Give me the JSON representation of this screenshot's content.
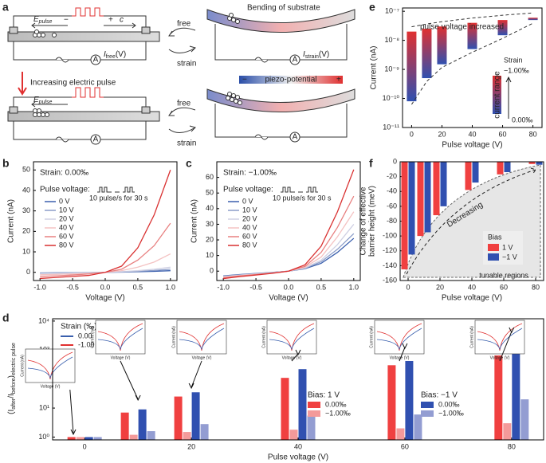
{
  "diagram": {
    "panel": "a",
    "e_main": "E",
    "e_sub": "pulse",
    "c": "c",
    "i_main": "I",
    "i_free_sub": "free",
    "i_strain_sub": "strain",
    "i_tail": "(V)",
    "minus": "−",
    "plus": "+",
    "increasing": "Increasing electric pulse",
    "free": "free",
    "strain": "strain",
    "bending": "Bending of substrate",
    "piezo": "piezo-potential",
    "ammeter": "A"
  },
  "chart_data": [
    {
      "panel": "b",
      "type": "line",
      "xlabel": "Voltage (V)",
      "ylabel": "Current (nA)",
      "annotations": {
        "strain": "Strain: 0.00‰",
        "legend_title": "Pulse voltage:",
        "pulse_note": "10 pulse/s for 30 s"
      },
      "x": [
        -1,
        -0.75,
        -0.5,
        -0.25,
        0,
        0.25,
        0.5,
        0.75,
        1
      ],
      "series": [
        {
          "name": "0 V",
          "color": "#3a5fad",
          "values": [
            -0.3,
            -0.2,
            -0.15,
            -0.1,
            0,
            0.1,
            0.3,
            0.5,
            0.8
          ]
        },
        {
          "name": "10 V",
          "color": "#8a9cc8",
          "values": [
            -0.4,
            -0.3,
            -0.2,
            -0.1,
            0,
            0.2,
            0.5,
            0.9,
            1.5
          ]
        },
        {
          "name": "20 V",
          "color": "#cfd0e3",
          "values": [
            -0.6,
            -0.5,
            -0.4,
            -0.2,
            0,
            0.3,
            0.8,
            1.5,
            2.5
          ]
        },
        {
          "name": "40 V",
          "color": "#f4c2c2",
          "values": [
            -1.2,
            -1,
            -0.8,
            -0.5,
            0,
            0.8,
            2.5,
            5,
            9
          ]
        },
        {
          "name": "60 V",
          "color": "#e88080",
          "values": [
            -2,
            -1.7,
            -1.3,
            -0.8,
            0,
            1.5,
            6,
            13,
            24
          ]
        },
        {
          "name": "80 V",
          "color": "#d93030",
          "values": [
            -3,
            -2.5,
            -2,
            -1.5,
            0,
            3,
            12,
            28,
            50
          ]
        }
      ],
      "xlim": [
        -1.1,
        1.1
      ],
      "xticks": [
        {
          "value": -1,
          "label": "-1.0"
        },
        -0.5,
        {
          "value": 0,
          "label": "0.0"
        },
        0.5,
        {
          "value": 1,
          "label": "1.0"
        }
      ],
      "ylim": [
        -4,
        54
      ],
      "yticks": [
        0,
        10,
        20,
        30,
        40,
        50
      ]
    },
    {
      "panel": "c",
      "type": "line",
      "xlabel": "Voltage (V)",
      "ylabel": "Current (nA)",
      "annotations": {
        "strain": "Strain: −1.00‰",
        "legend_title": "Pulse voltage:",
        "pulse_note": "10 pulse/s for 30 s"
      },
      "x": [
        -1,
        -0.75,
        -0.5,
        -0.25,
        0,
        0.25,
        0.5,
        0.75,
        1
      ],
      "series": [
        {
          "name": "0 V",
          "color": "#3a5fad",
          "values": [
            -3,
            -2.2,
            -1.5,
            -0.8,
            0,
            1.5,
            5,
            12,
            21
          ]
        },
        {
          "name": "10 V",
          "color": "#8a9cc8",
          "values": [
            -3.2,
            -2.4,
            -1.6,
            -0.9,
            0,
            1.7,
            6,
            14,
            24
          ]
        },
        {
          "name": "20 V",
          "color": "#cfd0e3",
          "values": [
            -3.5,
            -2.6,
            -1.8,
            -1,
            0,
            2,
            7,
            17,
            30
          ]
        },
        {
          "name": "40 V",
          "color": "#f4c2c2",
          "values": [
            -3.8,
            -2.8,
            -2,
            -1.1,
            0,
            2.5,
            9,
            22,
            38
          ]
        },
        {
          "name": "60 V",
          "color": "#e88080",
          "values": [
            -4.2,
            -3.1,
            -2.2,
            -1.2,
            0,
            3,
            12,
            28,
            48
          ]
        },
        {
          "name": "80 V",
          "color": "#d93030",
          "values": [
            -4.8,
            -3.5,
            -2.5,
            -1.4,
            0,
            4,
            16,
            38,
            65
          ]
        }
      ],
      "xlim": [
        -1.1,
        1.1
      ],
      "xticks": [
        {
          "value": -1,
          "label": "-1.0"
        },
        -0.5,
        {
          "value": 0,
          "label": "0.0"
        },
        0.5,
        {
          "value": 1,
          "label": "1.0"
        }
      ],
      "ylim": [
        -6,
        70
      ],
      "yticks": [
        0,
        10,
        20,
        30,
        40,
        50,
        60
      ]
    },
    {
      "panel": "d",
      "type": "bar",
      "log_y": true,
      "xlabel": "Pulse voltage (V)",
      "ylabel": {
        "main": [
          "(I",
          "/I",
          ")"
        ],
        "sub": [
          "after",
          "before",
          "electric pulse"
        ]
      },
      "strain_legend": {
        "title": "Strain (‰)",
        "items": [
          {
            "name": "0.00",
            "color": "#3a5fad"
          },
          {
            "name": "-1.00",
            "color": "#e03030"
          }
        ]
      },
      "bias_groups": [
        "Bias: 1 V",
        "Bias: −1 V"
      ],
      "inset": {
        "ylabel": "Current (nA)",
        "xlabel": "Voltage (V)"
      },
      "x": [
        0,
        10,
        20,
        40,
        60,
        80
      ],
      "series": [
        {
          "name": "0.00‰",
          "group": 0,
          "color": "#f04040",
          "values": [
            1,
            7,
            25,
            110,
            300,
            650
          ]
        },
        {
          "name": "−1.00‰",
          "group": 0,
          "color": "#f49a9a",
          "values": [
            1,
            1.2,
            1.5,
            1.8,
            2,
            3
          ]
        },
        {
          "name": "0.00‰",
          "group": 1,
          "color": "#3050b0",
          "values": [
            1,
            9,
            35,
            220,
            420,
            2500
          ]
        },
        {
          "name": "−1.00‰",
          "group": 1,
          "color": "#939dd2",
          "values": [
            1,
            1.6,
            2.8,
            5.5,
            6,
            20
          ]
        }
      ],
      "xlim": [
        -6,
        86
      ],
      "xticks": [
        0,
        20,
        40,
        60,
        80
      ],
      "ylim": [
        0.8,
        12000
      ],
      "yticks": [
        {
          "value": 1,
          "label": "10⁰"
        },
        {
          "value": 10,
          "label": "10¹"
        },
        {
          "value": 100,
          "label": "10²"
        },
        {
          "value": 1000,
          "label": "10³"
        },
        {
          "value": 10000,
          "label": "10⁴"
        }
      ]
    },
    {
      "panel": "e",
      "type": "range_bar",
      "log_y": true,
      "xlabel": "Pulse voltage (V)",
      "ylabel": "Current (nA)",
      "annotations": {
        "trend": "pulse voltage increased"
      },
      "legend": {
        "title": "Strain",
        "top": "−1.00‰",
        "bottom": "0.00‰",
        "label": "current range"
      },
      "x": [
        0,
        10,
        20,
        40,
        60,
        80
      ],
      "high": [
        2e-08,
        2.5e-08,
        3e-08,
        4e-08,
        5e-08,
        6e-08
      ],
      "low": [
        8e-11,
        5e-10,
        1.5e-09,
        5e-09,
        1.5e-08,
        5e-08
      ],
      "xlim": [
        -6,
        86
      ],
      "xticks": [
        0,
        20,
        40,
        60,
        80
      ],
      "ylim": [
        1e-11,
        1.3e-07
      ],
      "yticks": [
        {
          "value": 1e-11,
          "label": "10⁻¹¹"
        },
        {
          "value": 1e-10,
          "label": "10⁻¹⁰"
        },
        {
          "value": 1e-09,
          "label": "10⁻⁹"
        },
        {
          "value": 1e-08,
          "label": "10⁻⁸"
        },
        {
          "value": 1e-07,
          "label": "10⁻⁷"
        }
      ]
    },
    {
      "panel": "f",
      "type": "bar",
      "xlabel": "Pulse voltage (V)",
      "ylabel": [
        "Change of effective",
        "barrier height (meV)"
      ],
      "annotations": {
        "trend": "Decreasing",
        "region": "tunable regions"
      },
      "legend_title": "Bias",
      "x": [
        0,
        10,
        20,
        40,
        60,
        80
      ],
      "series": [
        {
          "name": "1 V",
          "color": "#f04040",
          "values": [
            -145,
            -100,
            -72,
            -38,
            -17,
            -3
          ]
        },
        {
          "name": "−1 V",
          "color": "#3050b0",
          "values": [
            -125,
            -95,
            -60,
            -28,
            -14,
            -4
          ]
        }
      ],
      "xlim": [
        -5,
        85
      ],
      "xticks": [
        0,
        20,
        40,
        60,
        80
      ],
      "ylim": [
        -160,
        0
      ],
      "yticks": [
        0,
        -20,
        -40,
        -60,
        -80,
        -100,
        -120,
        -140,
        -160
      ]
    }
  ]
}
